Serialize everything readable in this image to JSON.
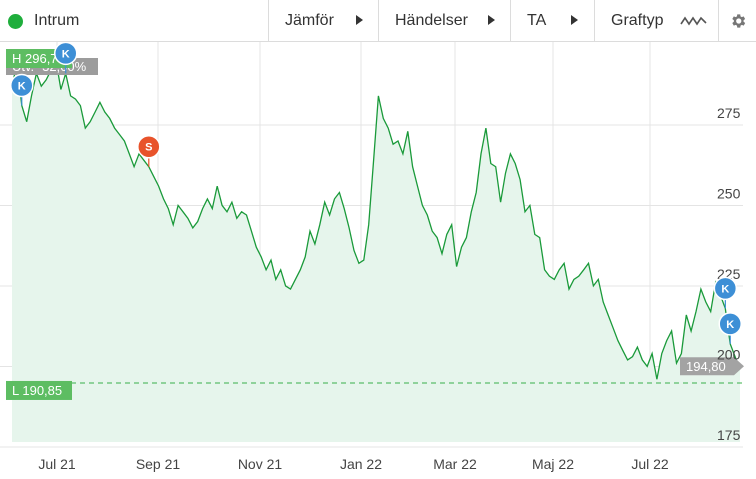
{
  "toolbar": {
    "instrument": "Intrum",
    "status_color": "#1fae3c",
    "compare": "Jämför",
    "events": "Händelser",
    "ta": "TA",
    "chart_type": "Graftyp",
    "chart_type_icon": "zigzag-line-icon",
    "settings_icon": "gear-icon"
  },
  "chart_data": {
    "type": "area",
    "x_labels": [
      "Jul 21",
      "Sep 21",
      "Nov 21",
      "Jan 22",
      "Mar 22",
      "Maj 22",
      "Jul 22"
    ],
    "y_ticks": [
      175,
      200,
      225,
      250,
      275
    ],
    "ylim": [
      172,
      300
    ],
    "high": {
      "label": "H 296,70",
      "value": 296.7
    },
    "low": {
      "label": "L 190,85",
      "value": 190.85
    },
    "last": {
      "label": "194,80",
      "value": 194.8
    },
    "hidden_tag": "Utv. -32,60%",
    "line_color": "#1a9a3a",
    "fill_color": "#e6f5ec",
    "values": [
      283,
      290,
      277,
      272,
      280,
      287,
      283,
      285,
      288,
      291,
      282,
      287,
      280,
      279,
      277,
      270,
      272,
      275,
      278,
      275,
      273,
      270,
      268,
      266,
      262,
      258,
      262,
      260,
      258,
      255,
      252,
      248,
      245,
      240,
      246,
      244,
      242,
      239,
      241,
      245,
      248,
      245,
      252,
      246,
      244,
      247,
      242,
      244,
      243,
      238,
      233,
      230,
      226,
      229,
      223,
      226,
      221,
      220,
      223,
      226,
      230,
      238,
      234,
      240,
      247,
      243,
      248,
      250,
      245,
      239,
      232,
      228,
      229,
      240,
      260,
      280,
      273,
      270,
      265,
      266,
      262,
      269,
      258,
      252,
      246,
      243,
      238,
      236,
      231,
      237,
      240,
      227,
      233,
      236,
      244,
      250,
      262,
      270,
      259,
      258,
      247,
      256,
      262,
      259,
      254,
      244,
      246,
      237,
      236,
      226,
      224,
      223,
      226,
      228,
      220,
      223,
      224,
      226,
      228,
      221,
      223,
      216,
      212,
      208,
      204,
      201,
      198,
      199,
      202,
      198,
      196,
      200,
      192,
      200,
      204,
      207,
      197,
      200,
      212,
      207,
      213,
      220,
      216,
      213,
      222,
      218,
      214,
      203,
      199,
      195
    ],
    "markers": [
      {
        "label": "K",
        "color": "#3d8fd6"
      },
      {
        "label": "K",
        "color": "#3d8fd6"
      },
      {
        "label": "S",
        "color": "#e8532b"
      },
      {
        "label": "K",
        "color": "#3d8fd6"
      },
      {
        "label": "K",
        "color": "#3d8fd6"
      }
    ]
  }
}
